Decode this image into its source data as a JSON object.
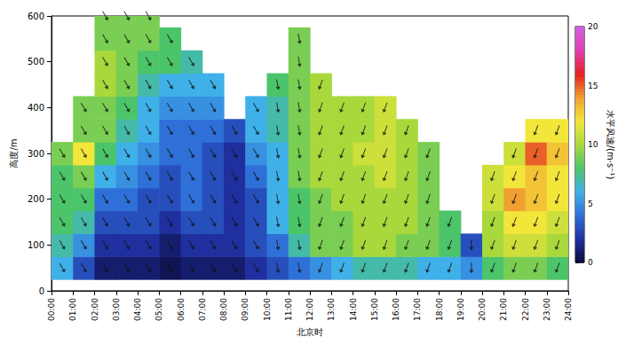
{
  "chart_data": {
    "type": "heatmap",
    "x_label": "北京时",
    "y_label": "高度/m",
    "xlim": [
      0,
      24
    ],
    "xticks": [
      {
        "value": 0,
        "label": "00:00"
      },
      {
        "value": 1,
        "label": "01:00"
      },
      {
        "value": 2,
        "label": "02:00"
      },
      {
        "value": 3,
        "label": "03:00"
      },
      {
        "value": 4,
        "label": "04:00"
      },
      {
        "value": 5,
        "label": "05:00"
      },
      {
        "value": 6,
        "label": "06:00"
      },
      {
        "value": 7,
        "label": "07:00"
      },
      {
        "value": 8,
        "label": "08:00"
      },
      {
        "value": 9,
        "label": "09:00"
      },
      {
        "value": 10,
        "label": "10:00"
      },
      {
        "value": 11,
        "label": "11:00"
      },
      {
        "value": 12,
        "label": "12:00"
      },
      {
        "value": 13,
        "label": "13:00"
      },
      {
        "value": 14,
        "label": "14:00"
      },
      {
        "value": 15,
        "label": "15:00"
      },
      {
        "value": 16,
        "label": "16:00"
      },
      {
        "value": 17,
        "label": "17:00"
      },
      {
        "value": 18,
        "label": "18:00"
      },
      {
        "value": 19,
        "label": "19:00"
      },
      {
        "value": 20,
        "label": "20:00"
      },
      {
        "value": 21,
        "label": "21:00"
      },
      {
        "value": 22,
        "label": "22:00"
      },
      {
        "value": 23,
        "label": "23:00"
      },
      {
        "value": 24,
        "label": "24:00"
      }
    ],
    "ylim": [
      0,
      600
    ],
    "yticks": [
      0,
      100,
      200,
      300,
      400,
      500,
      600
    ],
    "times": [
      0.5,
      1.5,
      2.5,
      3.5,
      4.5,
      5.5,
      6.5,
      7.5,
      8.5,
      9.5,
      10.5,
      11.5,
      12.5,
      13.5,
      14.5,
      15.5,
      16.5,
      17.5,
      18.5,
      19.5,
      20.5,
      21.5,
      22.5,
      23.5
    ],
    "heights": [
      50,
      100,
      150,
      200,
      250,
      300,
      350,
      400,
      450,
      500,
      550,
      600
    ],
    "speed": [
      [
        6,
        3,
        1,
        1,
        1,
        0.5,
        1,
        1,
        1,
        2,
        3,
        4,
        5,
        6,
        7,
        7,
        7,
        6,
        6,
        5,
        8,
        9,
        9,
        8
      ],
      [
        7,
        5,
        2,
        2,
        2,
        1,
        2,
        2,
        2,
        3,
        4,
        7,
        9,
        9,
        10,
        10,
        9,
        9,
        8,
        3,
        10,
        11,
        11,
        10
      ],
      [
        8,
        7,
        3,
        3,
        3,
        2,
        3,
        3,
        2,
        3,
        6,
        8,
        9,
        9,
        10,
        10,
        10,
        9,
        8,
        null,
        10,
        12,
        12,
        11
      ],
      [
        8,
        8,
        4,
        4,
        3,
        3,
        4,
        3,
        2,
        3,
        6,
        8,
        9,
        10,
        10,
        10,
        10,
        9,
        null,
        null,
        11,
        14,
        13,
        12
      ],
      [
        8,
        9,
        6,
        5,
        4,
        3,
        4,
        3,
        2,
        4,
        6,
        9,
        10,
        10,
        10,
        11,
        10,
        9,
        null,
        null,
        11,
        12,
        13,
        12
      ],
      [
        9,
        12,
        8,
        6,
        5,
        4,
        4,
        3,
        2,
        5,
        6,
        9,
        10,
        10,
        11,
        11,
        10,
        9,
        null,
        null,
        null,
        11,
        15,
        13
      ],
      [
        null,
        9,
        9,
        7,
        6,
        4,
        4,
        4,
        3,
        6,
        7,
        9,
        10,
        10,
        10,
        11,
        10,
        null,
        null,
        null,
        null,
        null,
        12,
        12
      ],
      [
        null,
        9,
        9,
        8,
        6,
        5,
        5,
        5,
        null,
        6,
        7,
        9,
        10,
        10,
        10,
        11,
        null,
        null,
        null,
        null,
        null,
        null,
        null,
        null
      ],
      [
        null,
        null,
        10,
        9,
        7,
        6,
        6,
        6,
        null,
        null,
        8,
        9,
        10,
        null,
        null,
        null,
        null,
        null,
        null,
        null,
        null,
        null,
        null,
        null
      ],
      [
        null,
        null,
        10,
        9,
        8,
        8,
        7,
        null,
        null,
        null,
        null,
        9,
        null,
        null,
        null,
        null,
        null,
        null,
        null,
        null,
        null,
        null,
        null,
        null
      ],
      [
        null,
        null,
        9,
        9,
        9,
        8,
        null,
        null,
        null,
        null,
        null,
        9,
        null,
        null,
        null,
        null,
        null,
        null,
        null,
        null,
        null,
        null,
        null,
        null
      ],
      [
        null,
        null,
        9,
        9,
        9,
        null,
        null,
        null,
        null,
        null,
        null,
        null,
        null,
        null,
        null,
        null,
        null,
        null,
        null,
        null,
        null,
        null,
        null,
        null
      ]
    ],
    "arrow_heading": [
      150,
      150,
      150,
      150,
      150,
      150,
      150,
      150,
      150,
      150,
      170,
      170,
      200,
      200,
      200,
      200,
      200,
      200,
      200,
      180,
      200,
      200,
      200,
      200
    ],
    "colorbar": {
      "label": "水平风速/(m·s⁻¹)",
      "range": [
        0,
        20
      ],
      "ticks": [
        0,
        5,
        10,
        15,
        20
      ],
      "colors": [
        "#0b0b3b",
        "#1f2f9e",
        "#2f6fd8",
        "#3fb0e8",
        "#4cc46a",
        "#a8d83c",
        "#f2e63a",
        "#f0a030",
        "#e52020",
        "#e040b0",
        "#d060e0"
      ]
    }
  }
}
